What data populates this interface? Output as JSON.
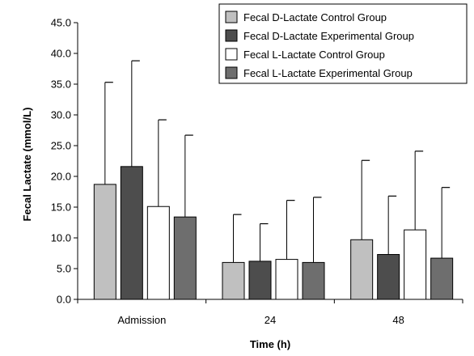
{
  "chart_data": {
    "type": "bar",
    "xlabel": "Time (h)",
    "ylabel": "Fecal Lactate (mmol/L)",
    "ylim": [
      0,
      45
    ],
    "yticks": [
      "0.0",
      "5.0",
      "10.0",
      "15.0",
      "20.0",
      "25.0",
      "30.0",
      "35.0",
      "40.0",
      "45.0"
    ],
    "categories": [
      "Admission",
      "24",
      "48"
    ],
    "grid": false,
    "error_bars": "upper",
    "legend_position": "top-right",
    "series": [
      {
        "name": "Fecal D-Lactate Control Group",
        "color": "#c0c0c0",
        "values": [
          18.7,
          6.0,
          9.7
        ],
        "error_upper": [
          35.3,
          13.8,
          22.6
        ]
      },
      {
        "name": "Fecal D-Lactate Experimental Group",
        "color": "#4d4d4d",
        "values": [
          21.6,
          6.2,
          7.3
        ],
        "error_upper": [
          38.8,
          12.3,
          16.8
        ]
      },
      {
        "name": "Fecal L-Lactate Control Group",
        "color": "#ffffff",
        "values": [
          15.1,
          6.5,
          11.3
        ],
        "error_upper": [
          29.2,
          16.1,
          24.1
        ]
      },
      {
        "name": "Fecal L-Lactate Experimental Group",
        "color": "#6e6e6e",
        "values": [
          13.4,
          6.0,
          6.7
        ],
        "error_upper": [
          26.7,
          16.6,
          18.2
        ]
      }
    ]
  }
}
